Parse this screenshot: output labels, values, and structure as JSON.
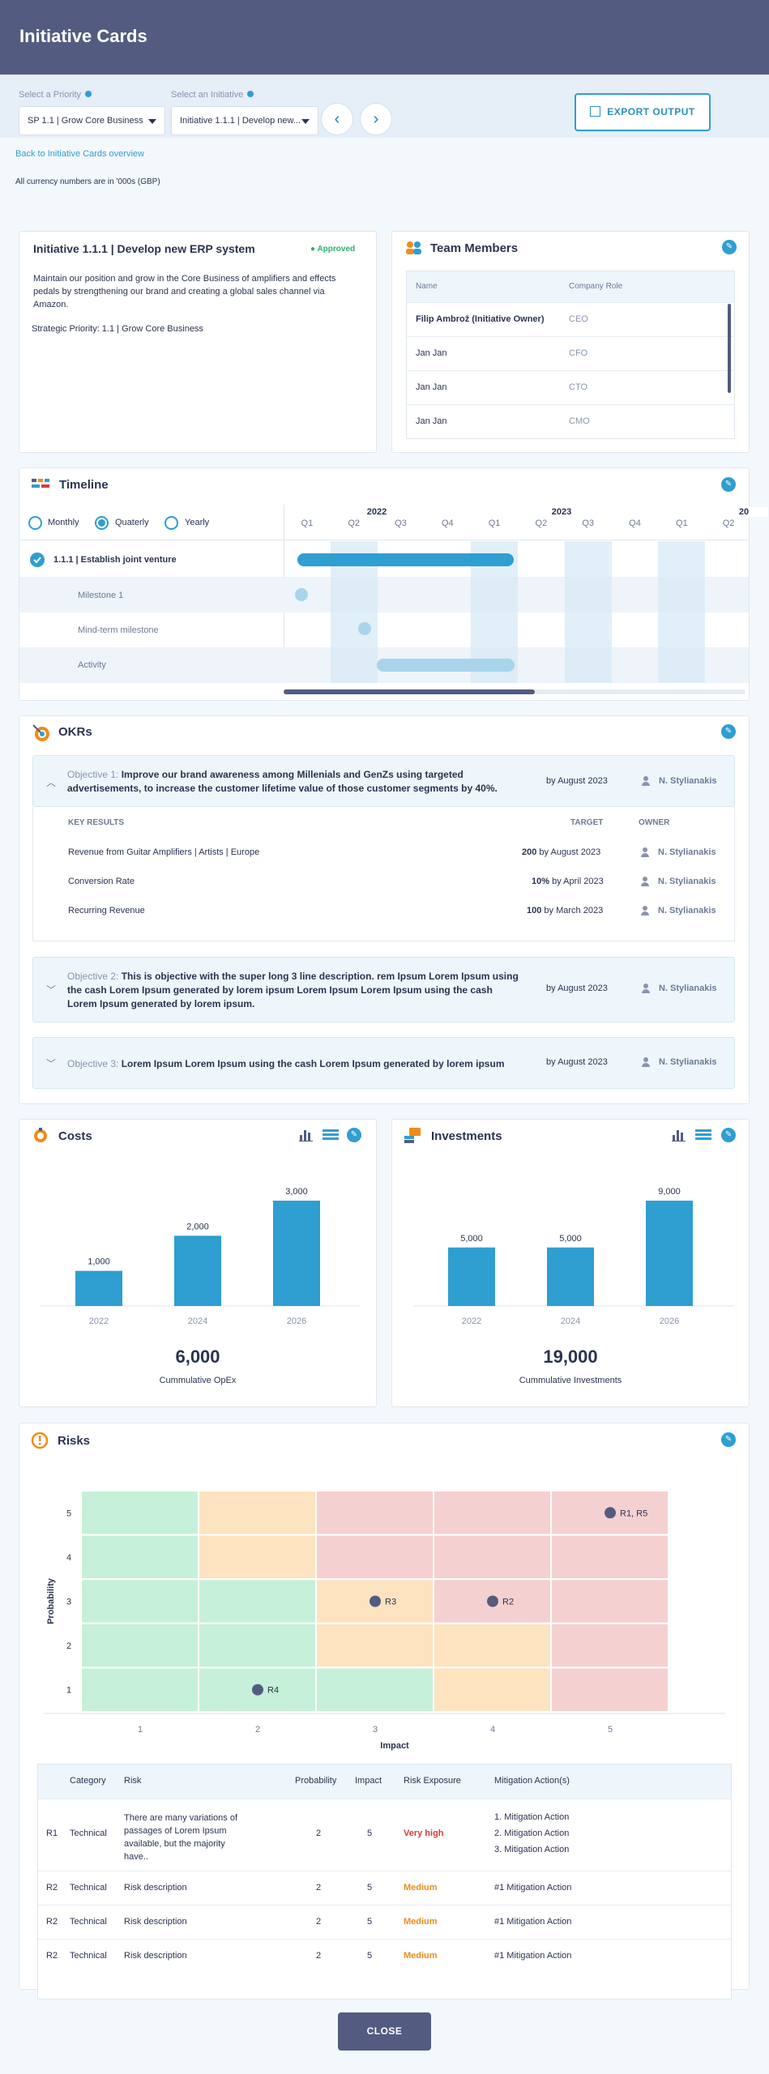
{
  "header": {
    "title": "Initiative Cards"
  },
  "selectors": {
    "priority_label": "Select a Priority",
    "priority_value": "SP 1.1 | Grow Core Business",
    "initiative_label": "Select an Initiative",
    "initiative_value": "Initiative 1.1.1 | Develop new...",
    "export_label": "EXPORT OUTPUT"
  },
  "back_link": "Back to Initiative Cards overview",
  "currency_note": "All currency numbers are in '000s (GBP)",
  "initiative": {
    "title": "Initiative 1.1.1 | Develop new ERP system",
    "status": "Approved",
    "description": "Maintain our position and grow in the Core Business of amplifiers and effects pedals by strengthening our brand and creating a global sales channel via Amazon.",
    "strategic_priority": "Strategic Priority: 1.1 | Grow Core Business"
  },
  "team": {
    "title": "Team Members",
    "col_name": "Name",
    "col_role": "Company Role",
    "rows": [
      {
        "name": "Filip Ambrož (Initiative Owner)",
        "role": "CEO"
      },
      {
        "name": "Jan Jan",
        "role": "CFO"
      },
      {
        "name": "Jan Jan",
        "role": "CTO"
      },
      {
        "name": "Jan Jan",
        "role": "CMO"
      }
    ]
  },
  "timeline": {
    "title": "Timeline",
    "views": [
      "Monthly",
      "Quaterly",
      "Yearly"
    ],
    "selected_view": "Quaterly",
    "years": [
      "2022",
      "2023",
      "20"
    ],
    "quarters": [
      "Q1",
      "Q2",
      "Q3",
      "Q4",
      "Q1",
      "Q2",
      "Q3",
      "Q4",
      "Q1",
      "Q2"
    ],
    "rows": [
      {
        "label": "1.1.1 | Establish joint venture"
      },
      {
        "label": "Milestone 1"
      },
      {
        "label": "Mind-term milestone"
      },
      {
        "label": "Activity"
      }
    ]
  },
  "okrs": {
    "title": "OKRs",
    "objectives": [
      {
        "label": "Objective 1:",
        "text": "Improve our brand awareness among Millenials and GenZs using targeted advertisements, to increase the customer lifetime value of those customer segments by 40%.",
        "by": "by August 2023",
        "owner": "N. Stylianakis"
      },
      {
        "label": "Objective 2:",
        "text": "This is objective with the super long 3 line description. rem Ipsum Lorem Ipsum using the cash Lorem Ipsum generated by lorem ipsum Lorem Ipsum Lorem Ipsum using the cash Lorem Ipsum generated by lorem ipsum.",
        "by": "by August 2023",
        "owner": "N. Stylianakis"
      },
      {
        "label": "Objective 3:",
        "text": "Lorem Ipsum Lorem Ipsum using the cash Lorem Ipsum generated by lorem ipsum",
        "by": "by August 2023",
        "owner": "N. Stylianakis"
      }
    ],
    "kr_header": {
      "key_results": "KEY RESULTS",
      "target": "TARGET",
      "owner": "OWNER"
    },
    "key_results": [
      {
        "name": "Revenue from Guitar Amplifiers | Artists | Europe",
        "target": "200",
        "by": "by August 2023",
        "owner": "N. Stylianakis"
      },
      {
        "name": "Conversion Rate",
        "target": "10%",
        "by": "by April 2023",
        "owner": "N. Stylianakis"
      },
      {
        "name": "Recurring Revenue",
        "target": "100",
        "by": "by March 2023",
        "owner": "N. Stylianakis"
      }
    ]
  },
  "costs": {
    "title": "Costs",
    "total": "6,000",
    "total_label": "Cummulative OpEx"
  },
  "investments": {
    "title": "Investments",
    "total": "19,000",
    "total_label": "Cummulative Investments"
  },
  "chart_data": [
    {
      "type": "bar",
      "title": "Costs",
      "categories": [
        "2022",
        "2024",
        "2026"
      ],
      "values": [
        1000,
        2000,
        3000
      ],
      "value_labels": [
        "1,000",
        "2,000",
        "3,000"
      ],
      "ylim": [
        0,
        3000
      ]
    },
    {
      "type": "bar",
      "title": "Investments",
      "categories": [
        "2022",
        "2024",
        "2026"
      ],
      "values": [
        5000,
        5000,
        9000
      ],
      "value_labels": [
        "5,000",
        "5,000",
        "9,000"
      ],
      "ylim": [
        0,
        9000
      ]
    },
    {
      "type": "heatmap",
      "title": "Risks",
      "xlabel": "Impact",
      "ylabel": "Probability",
      "x": [
        1,
        2,
        3,
        4,
        5
      ],
      "y": [
        1,
        2,
        3,
        4,
        5
      ],
      "points": [
        {
          "label": "R1, R5",
          "impact": 5,
          "probability": 5
        },
        {
          "label": "R3",
          "impact": 3,
          "probability": 3
        },
        {
          "label": "R2",
          "impact": 4,
          "probability": 3
        },
        {
          "label": "R4",
          "impact": 2,
          "probability": 1
        }
      ]
    }
  ],
  "risks": {
    "title": "Risks",
    "columns": [
      "Category",
      "Risk",
      "Probability",
      "Impact",
      "Risk Exposure",
      "Mitigation Action(s)"
    ],
    "rows": [
      {
        "id": "R1",
        "category": "Technical",
        "risk": "There are many variations of passages of Lorem Ipsum available, but the majority have..",
        "probability": "2",
        "impact": "5",
        "exposure": "Very high",
        "mitigation": [
          "1. Mitigation Action",
          "2. Mitigation Action",
          "3. Mitigation Action"
        ]
      },
      {
        "id": "R2",
        "category": "Technical",
        "risk": "Risk description",
        "probability": "2",
        "impact": "5",
        "exposure": "Medium",
        "mitigation": [
          "#1 Mitigation Action"
        ]
      },
      {
        "id": "R2",
        "category": "Technical",
        "risk": "Risk description",
        "probability": "2",
        "impact": "5",
        "exposure": "Medium",
        "mitigation": [
          "#1 Mitigation Action"
        ]
      },
      {
        "id": "R2",
        "category": "Technical",
        "risk": "Risk description",
        "probability": "2",
        "impact": "5",
        "exposure": "Medium",
        "mitigation": [
          "#1 Mitigation Action"
        ]
      }
    ]
  },
  "colors": {
    "accent": "#2f9ed1",
    "header": "#535c80",
    "very_high": "#d43b3b",
    "medium": "#f08c19",
    "approved": "#27b46e"
  },
  "close_label": "CLOSE"
}
